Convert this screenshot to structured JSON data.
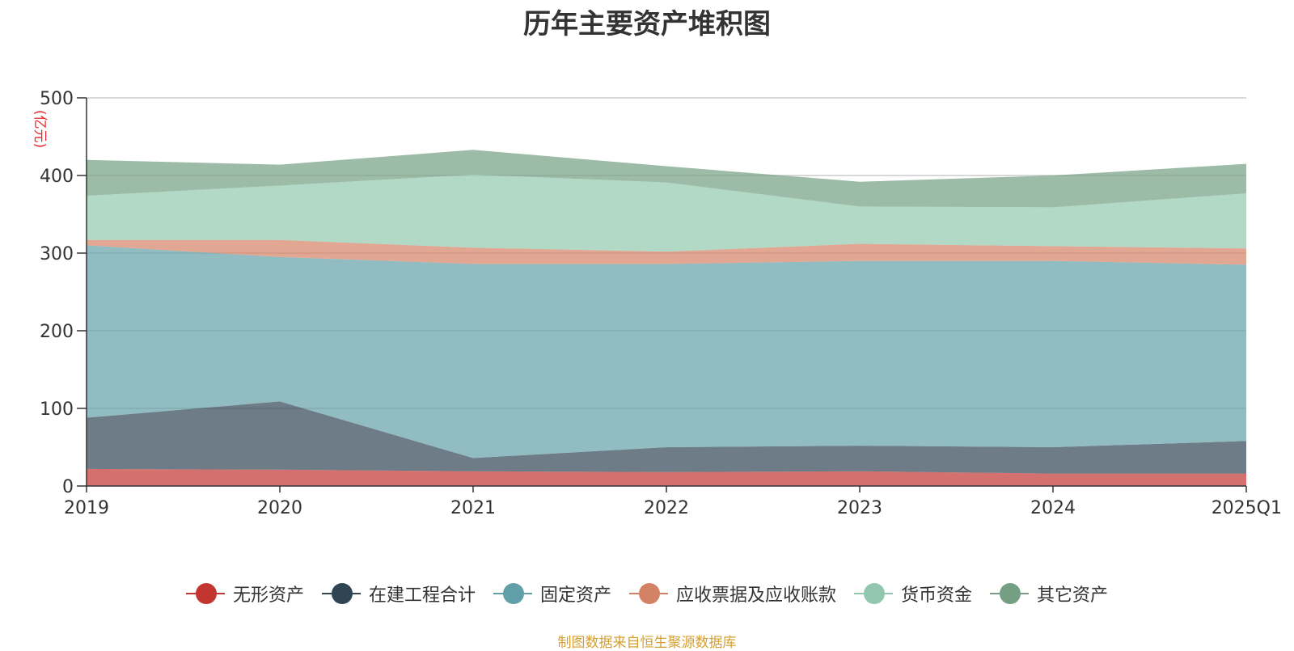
{
  "title": "历年主要资产堆积图",
  "unit": "(亿元)",
  "source": "制图数据来自恒生聚源数据库",
  "chart_data": {
    "type": "area",
    "stacked": true,
    "x": [
      "2019",
      "2020",
      "2021",
      "2022",
      "2023",
      "2024",
      "2025Q1"
    ],
    "ylim": [
      0,
      500
    ],
    "yticks": [
      0,
      100,
      200,
      300,
      400,
      500
    ],
    "grid": true,
    "legend_position": "bottom",
    "series": [
      {
        "name": "无形资产",
        "color": "#c23531",
        "values": [
          22,
          21,
          19,
          18,
          19,
          16,
          16
        ]
      },
      {
        "name": "在建工程合计",
        "color": "#2f4554",
        "values": [
          66,
          88,
          17,
          32,
          33,
          34,
          42
        ]
      },
      {
        "name": "固定资产",
        "color": "#61a0a8",
        "values": [
          222,
          186,
          250,
          236,
          238,
          240,
          227
        ]
      },
      {
        "name": "应收票据及应收账款",
        "color": "#d48265",
        "values": [
          7,
          22,
          21,
          16,
          22,
          19,
          21
        ]
      },
      {
        "name": "货币资金",
        "color": "#91c7ae",
        "values": [
          57,
          70,
          94,
          89,
          48,
          50,
          71
        ]
      },
      {
        "name": "其它资产",
        "color": "#749f83",
        "values": [
          46,
          27,
          32,
          21,
          32,
          41,
          38
        ]
      }
    ]
  }
}
